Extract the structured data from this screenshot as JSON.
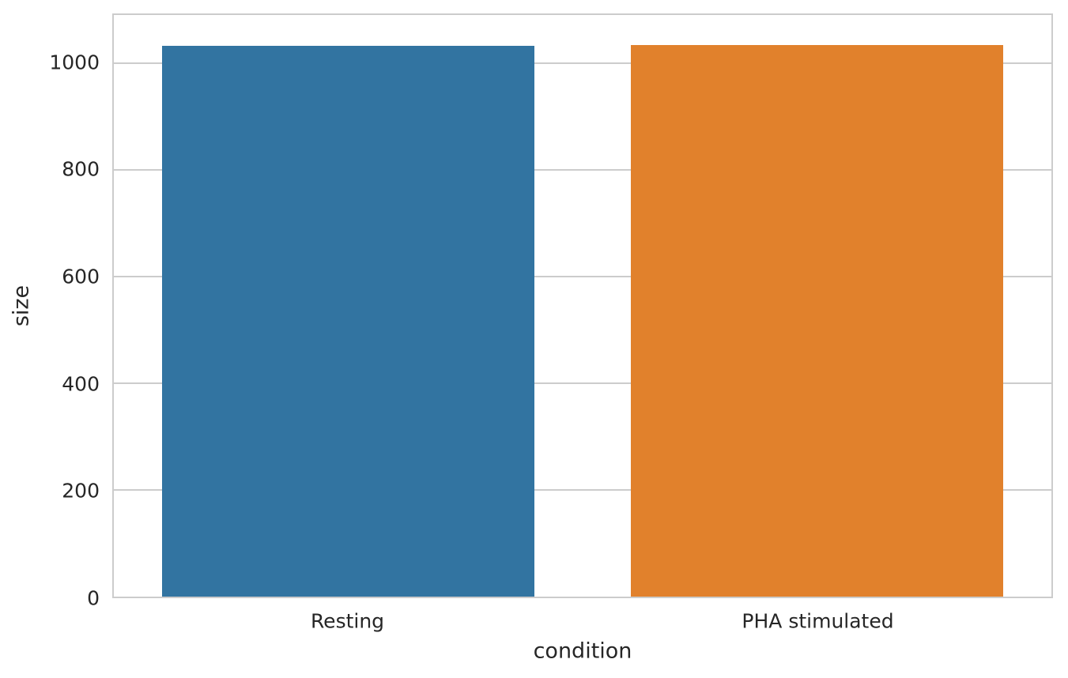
{
  "chart_data": {
    "type": "bar",
    "title": "",
    "xlabel": "condition",
    "ylabel": "size",
    "categories": [
      "Resting",
      "PHA stimulated"
    ],
    "values": [
      1033,
      1035
    ],
    "bar_colors": [
      "#3274a1",
      "#e1812c"
    ],
    "ylim": [
      0,
      1091
    ],
    "yticks": [
      0,
      200,
      400,
      600,
      800,
      1000
    ],
    "bar_width_fraction": 0.795,
    "grid": "horizontal gridlines on",
    "legend_position": "none",
    "style": {
      "background_color": "#ffffff",
      "grid_color": "#cccccc",
      "spine_color": "#cccccc",
      "text_color": "#262626"
    }
  }
}
